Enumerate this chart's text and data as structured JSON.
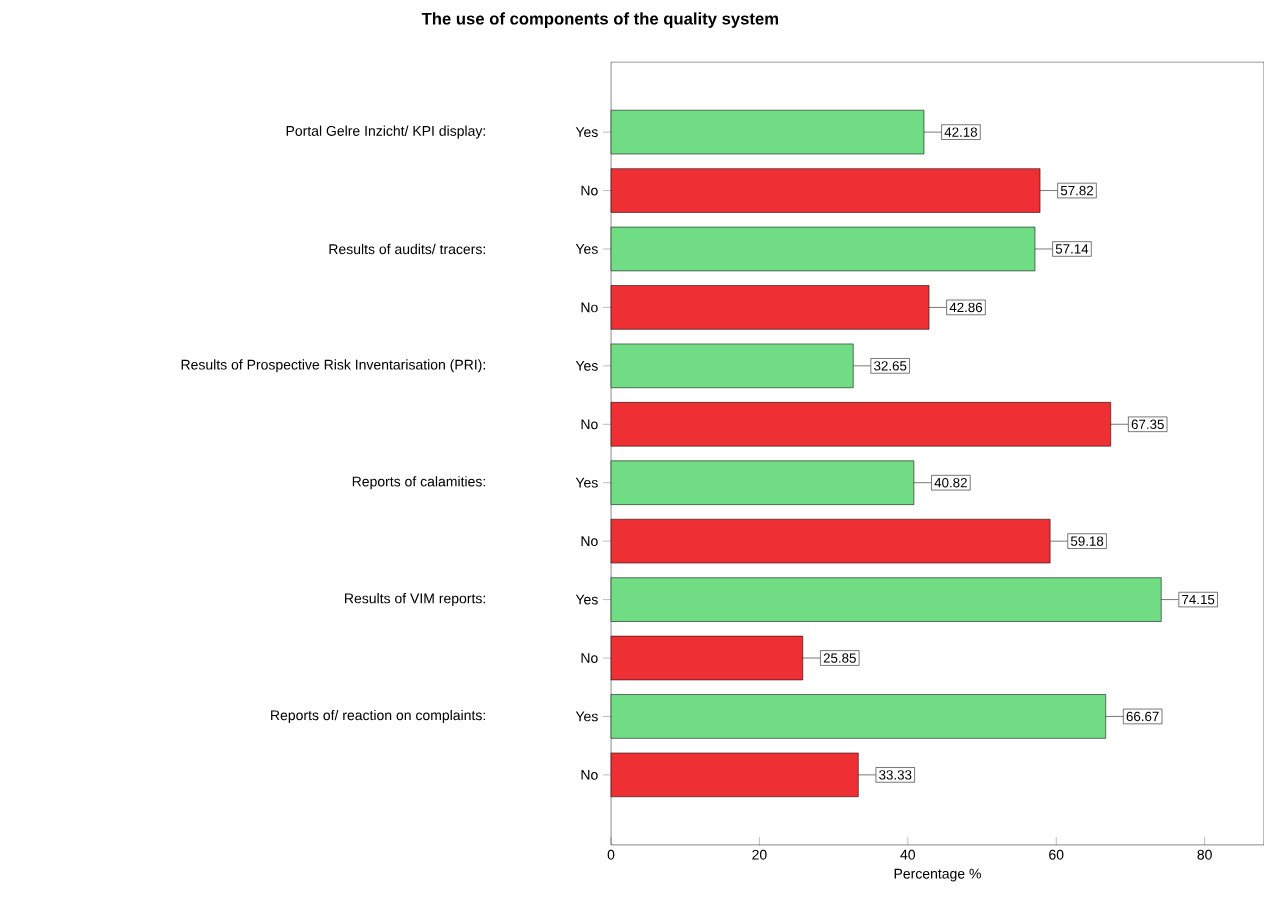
{
  "chart_data": {
    "type": "bar",
    "orientation": "horizontal",
    "title": "The use of components of the quality system",
    "xlabel": "Percentage %",
    "categories": [
      "Yes",
      "No",
      "Yes",
      "No",
      "Yes",
      "No",
      "Yes",
      "No",
      "Yes",
      "No",
      "Yes",
      "No"
    ],
    "values": [
      42.18,
      57.82,
      57.14,
      42.86,
      32.65,
      67.35,
      40.82,
      59.18,
      74.15,
      25.85,
      66.67,
      33.33
    ],
    "colors": [
      "#70dc84",
      "#ee3035",
      "#70dc84",
      "#ee3035",
      "#70dc84",
      "#ee3035",
      "#70dc84",
      "#ee3035",
      "#70dc84",
      "#ee3035",
      "#70dc84",
      "#ee3035"
    ],
    "annotations": [
      "Portal Gelre Inzicht/ KPI display:",
      "Results of audits/ tracers:",
      "Results of Prospective Risk Inventarisation (PRI):",
      "Reports of calamities:",
      "Results of VIM reports:",
      "Reports of/ reaction on complaints:"
    ],
    "xlim": [
      0,
      88
    ],
    "xticks": [
      0,
      20,
      40,
      60,
      80
    ],
    "data_labels": true
  }
}
